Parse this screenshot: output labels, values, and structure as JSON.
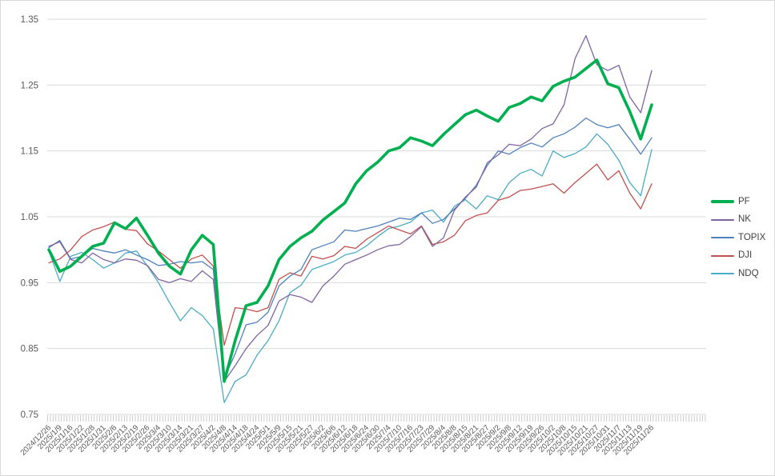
{
  "chart_data": {
    "type": "line",
    "title": "",
    "xlabel": "",
    "ylabel": "",
    "ylim": [
      0.75,
      1.35
    ],
    "y_tick_labels": [
      "1.35",
      "1.25",
      "1.15",
      "1.05",
      "0.95",
      "0.85",
      "0.75"
    ],
    "grid": "horizontal",
    "legend_position": "right",
    "axis_text_color": "#595959",
    "grid_color": "#d9d9d9",
    "x_labels": [
      "2024/12/26",
      "2025/1/9",
      "2025/1/16",
      "2025/1/22",
      "2025/1/28",
      "2025/1/31",
      "2025/2/6",
      "2025/2/13",
      "2025/2/19",
      "2025/2/26",
      "2025/3/4",
      "2025/3/10",
      "2025/3/14",
      "2025/3/21",
      "2025/3/27",
      "2025/4/2",
      "2025/4/8",
      "2025/4/14",
      "2025/4/18",
      "2025/4/24",
      "2025/5/1",
      "2025/5/9",
      "2025/5/15",
      "2025/5/21",
      "2025/5/27",
      "2025/6/2",
      "2025/6/6",
      "2025/6/12",
      "2025/6/18",
      "2025/6/24",
      "2025/6/30",
      "2025/7/4",
      "2025/7/10",
      "2025/7/16",
      "2025/7/23",
      "2025/7/29",
      "2025/8/4",
      "2025/8/8",
      "2025/8/15",
      "2025/8/21",
      "2025/8/27",
      "2025/9/2",
      "2025/9/8",
      "2025/9/12",
      "2025/9/19",
      "2025/9/26",
      "2025/10/2",
      "2025/10/8",
      "2025/10/15",
      "2025/10/21",
      "2025/10/27",
      "2025/10/31",
      "2025/11/7",
      "2025/11/13",
      "2025/11/19",
      "2025/11/26"
    ],
    "series": [
      {
        "name": "NDQ",
        "color": "#4bacc6",
        "width": 1.3,
        "values": [
          0.998,
          0.952,
          0.99,
          0.996,
          0.985,
          0.972,
          0.98,
          0.995,
          0.998,
          0.975,
          0.95,
          0.92,
          0.892,
          0.912,
          0.9,
          0.88,
          0.768,
          0.8,
          0.81,
          0.84,
          0.862,
          0.892,
          0.935,
          0.946,
          0.97,
          0.976,
          0.982,
          0.992,
          0.996,
          1.006,
          1.02,
          1.032,
          1.036,
          1.042,
          1.056,
          1.06,
          1.042,
          1.066,
          1.076,
          1.062,
          1.082,
          1.076,
          1.102,
          1.116,
          1.122,
          1.112,
          1.15,
          1.14,
          1.146,
          1.156,
          1.176,
          1.16,
          1.136,
          1.102,
          1.082,
          1.152
        ]
      },
      {
        "name": "DJI",
        "color": "#c0504d",
        "width": 1.3,
        "values": [
          0.98,
          0.986,
          1.0,
          1.02,
          1.03,
          1.035,
          1.042,
          1.031,
          1.029,
          1.009,
          0.998,
          0.985,
          0.972,
          0.986,
          0.992,
          0.975,
          0.855,
          0.912,
          0.91,
          0.906,
          0.912,
          0.955,
          0.965,
          0.96,
          0.99,
          0.986,
          0.991,
          1.005,
          1.002,
          1.016,
          1.026,
          1.036,
          1.03,
          1.024,
          1.036,
          1.008,
          1.012,
          1.022,
          1.044,
          1.052,
          1.056,
          1.075,
          1.08,
          1.09,
          1.092,
          1.096,
          1.1,
          1.086,
          1.102,
          1.116,
          1.13,
          1.106,
          1.12,
          1.086,
          1.062,
          1.1
        ]
      },
      {
        "name": "TOPIX",
        "color": "#4f81bd",
        "width": 1.3,
        "values": [
          1.003,
          1.014,
          0.986,
          0.99,
          1.002,
          0.998,
          0.995,
          1.0,
          0.992,
          0.985,
          0.976,
          0.978,
          0.982,
          0.98,
          0.982,
          0.97,
          0.805,
          0.842,
          0.886,
          0.89,
          0.905,
          0.945,
          0.96,
          0.97,
          1.0,
          1.006,
          1.012,
          1.03,
          1.028,
          1.032,
          1.036,
          1.042,
          1.048,
          1.046,
          1.056,
          1.04,
          1.046,
          1.062,
          1.078,
          1.098,
          1.128,
          1.15,
          1.145,
          1.155,
          1.162,
          1.156,
          1.17,
          1.176,
          1.186,
          1.2,
          1.19,
          1.185,
          1.19,
          1.168,
          1.145,
          1.17
        ]
      },
      {
        "name": "NK",
        "color": "#8064a2",
        "width": 1.3,
        "values": [
          1.005,
          1.012,
          0.985,
          0.98,
          0.995,
          0.985,
          0.98,
          0.986,
          0.984,
          0.976,
          0.955,
          0.95,
          0.956,
          0.952,
          0.968,
          0.955,
          0.8,
          0.824,
          0.85,
          0.87,
          0.885,
          0.922,
          0.932,
          0.928,
          0.92,
          0.945,
          0.96,
          0.978,
          0.985,
          0.992,
          1.0,
          1.006,
          1.008,
          1.02,
          1.035,
          1.005,
          1.018,
          1.06,
          1.08,
          1.095,
          1.132,
          1.144,
          1.16,
          1.158,
          1.168,
          1.184,
          1.191,
          1.22,
          1.29,
          1.325,
          1.281,
          1.272,
          1.28,
          1.232,
          1.208,
          1.272
        ]
      },
      {
        "name": "PF",
        "color": "#00b050",
        "width": 3.6,
        "values": [
          1.0,
          0.967,
          0.975,
          0.99,
          1.005,
          1.01,
          1.041,
          1.032,
          1.048,
          1.022,
          0.995,
          0.975,
          0.963,
          1.0,
          1.022,
          1.008,
          0.8,
          0.862,
          0.915,
          0.92,
          0.945,
          0.985,
          1.005,
          1.018,
          1.028,
          1.045,
          1.058,
          1.071,
          1.1,
          1.12,
          1.133,
          1.15,
          1.155,
          1.17,
          1.165,
          1.158,
          1.175,
          1.19,
          1.205,
          1.212,
          1.203,
          1.195,
          1.216,
          1.222,
          1.232,
          1.226,
          1.248,
          1.256,
          1.262,
          1.275,
          1.288,
          1.252,
          1.246,
          1.21,
          1.168,
          1.22
        ]
      }
    ],
    "legend_order": [
      "PF",
      "NK",
      "TOPIX",
      "DJI",
      "NDQ"
    ]
  }
}
